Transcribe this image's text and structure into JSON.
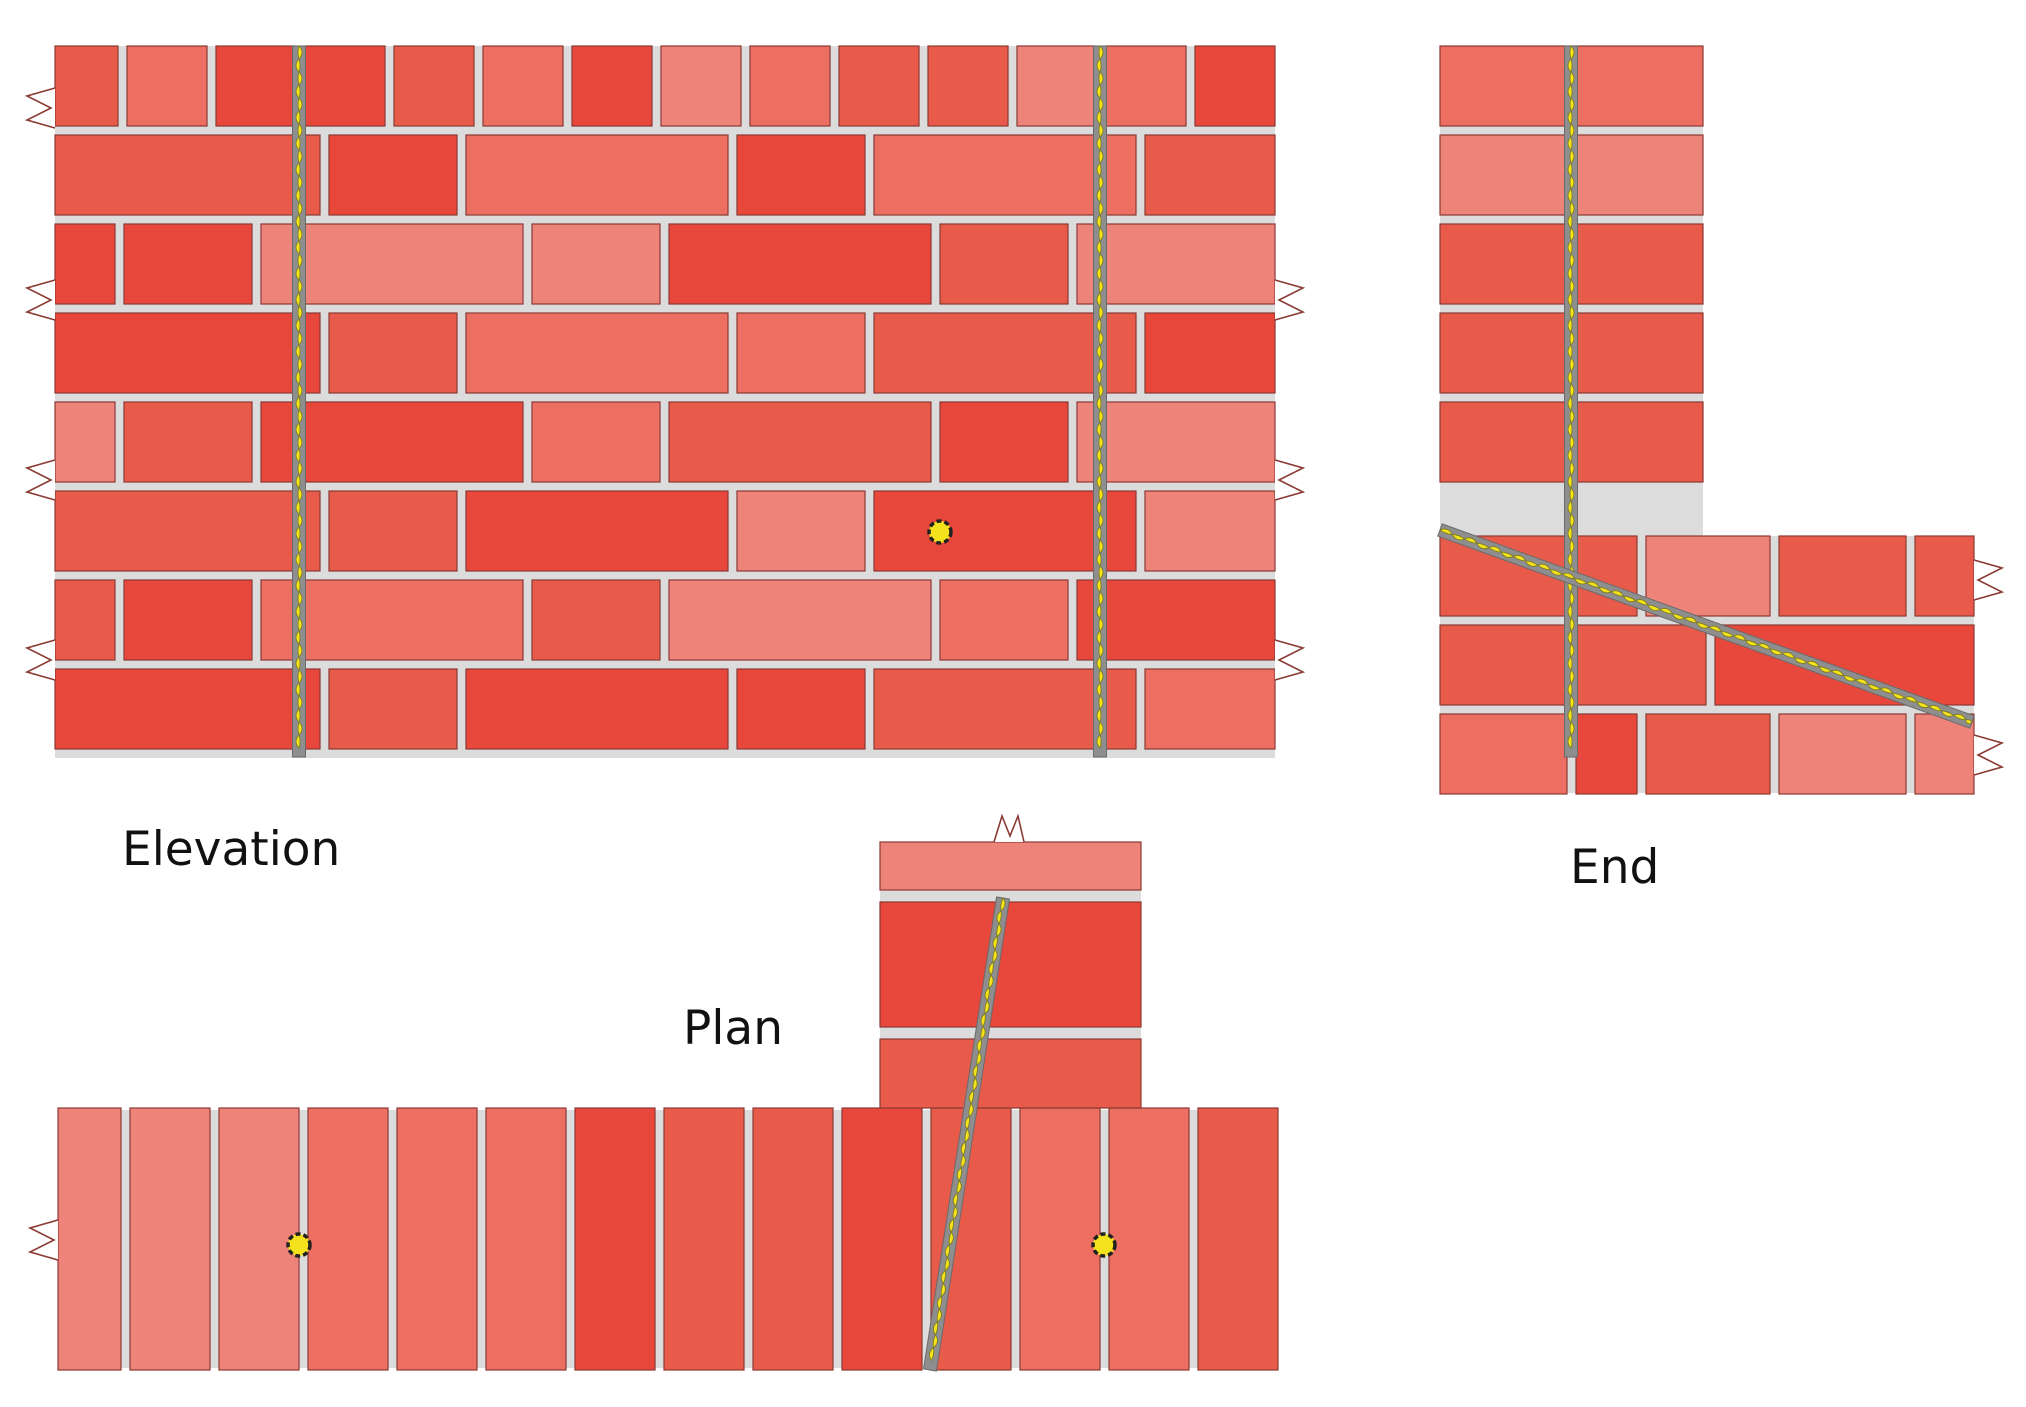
{
  "labels": {
    "elevation": "Elevation",
    "end": "End",
    "plan": "Plan"
  },
  "views": [
    {
      "id": "elevation",
      "shows": "wall face, stretcher bond with two vertical twisted ties and one tie end"
    },
    {
      "id": "end",
      "shows": "end section of the wall with a vertical and an inclined twisted tie"
    },
    {
      "id": "plan",
      "shows": "plan of the wall with a diagonal twisted tie crossing into the return and two tie ends"
    }
  ],
  "colors": {
    "brick_shades": [
      "#e8473b",
      "#e85b4a",
      "#ec6f62",
      "#ee837a"
    ],
    "mortar": "#dcdcdc",
    "brick_outline": "#8a3a33",
    "tie_fill": "#f4e21c",
    "tie_outline": "#8e8e8e",
    "background": "#ffffff",
    "label_text": "#111111"
  }
}
